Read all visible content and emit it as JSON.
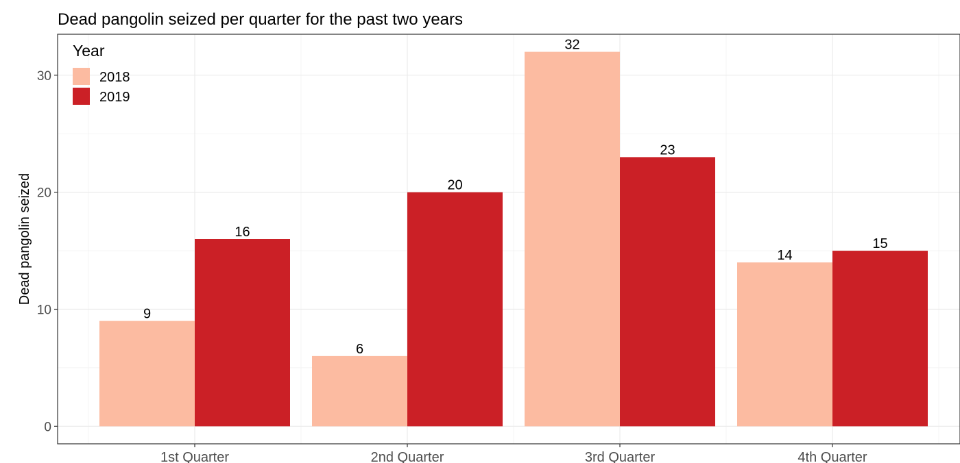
{
  "chart_data": {
    "type": "bar",
    "title": "Dead pangolin seized per quarter for the past two years",
    "xlabel": "",
    "ylabel": "Dead pangolin seized",
    "categories": [
      "1st Quarter",
      "2nd Quarter",
      "3rd Quarter",
      "4th Quarter"
    ],
    "series": [
      {
        "name": "2018",
        "values": [
          9,
          6,
          32,
          14
        ],
        "color": "#fcbba1"
      },
      {
        "name": "2019",
        "values": [
          16,
          20,
          23,
          15
        ],
        "color": "#cb2026"
      }
    ],
    "ylim": [
      -1.5,
      33.5
    ],
    "yticks": [
      0,
      10,
      20,
      30
    ],
    "grid": true,
    "legend": {
      "title": "Year",
      "position": "top-left-inside"
    },
    "data_labels": true
  }
}
